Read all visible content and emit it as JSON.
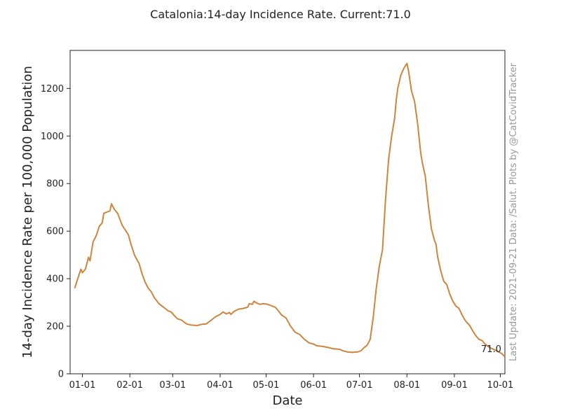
{
  "chart_data": {
    "type": "line",
    "title": "Catalonia:14-day Incidence Rate. Current:71.0",
    "xlabel": "Date",
    "ylabel": "14-day Incidence Rate per 100,000 Population",
    "side_note": "Last Update: 2021-09-21 Data: /Salut.   Plots by @CatCovidTracker",
    "annotation": "71.0",
    "line_color": "#cd853f",
    "ylim": [
      0,
      1360
    ],
    "yticks": [
      0,
      200,
      400,
      600,
      800,
      1000,
      1200
    ],
    "xlim": [
      "2020-12-24",
      "2021-10-04"
    ],
    "xticks": [
      {
        "date": "2021-01-01",
        "label": "01-01"
      },
      {
        "date": "2021-02-01",
        "label": "02-01"
      },
      {
        "date": "2021-03-01",
        "label": "03-01"
      },
      {
        "date": "2021-04-01",
        "label": "04-01"
      },
      {
        "date": "2021-05-01",
        "label": "05-01"
      },
      {
        "date": "2021-06-01",
        "label": "06-01"
      },
      {
        "date": "2021-07-01",
        "label": "07-01"
      },
      {
        "date": "2021-08-01",
        "label": "08-01"
      },
      {
        "date": "2021-09-01",
        "label": "09-01"
      },
      {
        "date": "2021-10-01",
        "label": "10-01"
      }
    ],
    "series": [
      {
        "points": [
          [
            "2020-12-27",
            360
          ],
          [
            "2020-12-29",
            400
          ],
          [
            "2020-12-31",
            440
          ],
          [
            "2021-01-01",
            425
          ],
          [
            "2021-01-03",
            440
          ],
          [
            "2021-01-05",
            490
          ],
          [
            "2021-01-06",
            475
          ],
          [
            "2021-01-08",
            555
          ],
          [
            "2021-01-10",
            580
          ],
          [
            "2021-01-12",
            620
          ],
          [
            "2021-01-14",
            635
          ],
          [
            "2021-01-15",
            675
          ],
          [
            "2021-01-17",
            680
          ],
          [
            "2021-01-19",
            685
          ],
          [
            "2021-01-20",
            715
          ],
          [
            "2021-01-22",
            690
          ],
          [
            "2021-01-24",
            675
          ],
          [
            "2021-01-27",
            625
          ],
          [
            "2021-01-30",
            595
          ],
          [
            "2021-01-31",
            585
          ],
          [
            "2021-02-02",
            540
          ],
          [
            "2021-02-04",
            500
          ],
          [
            "2021-02-06",
            475
          ],
          [
            "2021-02-07",
            465
          ],
          [
            "2021-02-09",
            420
          ],
          [
            "2021-02-11",
            385
          ],
          [
            "2021-02-13",
            360
          ],
          [
            "2021-02-15",
            345
          ],
          [
            "2021-02-17",
            320
          ],
          [
            "2021-02-20",
            295
          ],
          [
            "2021-02-22",
            285
          ],
          [
            "2021-02-24",
            275
          ],
          [
            "2021-02-26",
            265
          ],
          [
            "2021-02-28",
            260
          ],
          [
            "2021-03-02",
            245
          ],
          [
            "2021-03-04",
            232
          ],
          [
            "2021-03-07",
            225
          ],
          [
            "2021-03-10",
            210
          ],
          [
            "2021-03-13",
            205
          ],
          [
            "2021-03-17",
            203
          ],
          [
            "2021-03-20",
            208
          ],
          [
            "2021-03-23",
            210
          ],
          [
            "2021-03-26",
            225
          ],
          [
            "2021-03-29",
            240
          ],
          [
            "2021-04-01",
            250
          ],
          [
            "2021-04-03",
            260
          ],
          [
            "2021-04-05",
            252
          ],
          [
            "2021-04-07",
            258
          ],
          [
            "2021-04-08",
            250
          ],
          [
            "2021-04-10",
            262
          ],
          [
            "2021-04-13",
            272
          ],
          [
            "2021-04-16",
            275
          ],
          [
            "2021-04-19",
            280
          ],
          [
            "2021-04-20",
            295
          ],
          [
            "2021-04-22",
            292
          ],
          [
            "2021-04-23",
            305
          ],
          [
            "2021-04-25",
            297
          ],
          [
            "2021-04-27",
            292
          ],
          [
            "2021-04-29",
            295
          ],
          [
            "2021-05-02",
            292
          ],
          [
            "2021-05-05",
            285
          ],
          [
            "2021-05-07",
            280
          ],
          [
            "2021-05-09",
            265
          ],
          [
            "2021-05-11",
            248
          ],
          [
            "2021-05-14",
            235
          ],
          [
            "2021-05-17",
            200
          ],
          [
            "2021-05-20",
            175
          ],
          [
            "2021-05-23",
            165
          ],
          [
            "2021-05-26",
            145
          ],
          [
            "2021-05-29",
            130
          ],
          [
            "2021-06-01",
            125
          ],
          [
            "2021-06-03",
            118
          ],
          [
            "2021-06-07",
            115
          ],
          [
            "2021-06-11",
            110
          ],
          [
            "2021-06-14",
            105
          ],
          [
            "2021-06-18",
            103
          ],
          [
            "2021-06-20",
            97
          ],
          [
            "2021-06-23",
            92
          ],
          [
            "2021-06-26",
            90
          ],
          [
            "2021-06-30",
            92
          ],
          [
            "2021-07-02",
            97
          ],
          [
            "2021-07-04",
            110
          ],
          [
            "2021-07-06",
            120
          ],
          [
            "2021-07-08",
            145
          ],
          [
            "2021-07-10",
            240
          ],
          [
            "2021-07-12",
            360
          ],
          [
            "2021-07-14",
            455
          ],
          [
            "2021-07-16",
            520
          ],
          [
            "2021-07-18",
            730
          ],
          [
            "2021-07-20",
            900
          ],
          [
            "2021-07-22",
            1000
          ],
          [
            "2021-07-24",
            1075
          ],
          [
            "2021-07-25",
            1150
          ],
          [
            "2021-07-26",
            1200
          ],
          [
            "2021-07-28",
            1255
          ],
          [
            "2021-07-30",
            1285
          ],
          [
            "2021-08-01",
            1305
          ],
          [
            "2021-08-02",
            1275
          ],
          [
            "2021-08-04",
            1190
          ],
          [
            "2021-08-06",
            1145
          ],
          [
            "2021-08-08",
            1050
          ],
          [
            "2021-08-10",
            930
          ],
          [
            "2021-08-11",
            890
          ],
          [
            "2021-08-13",
            830
          ],
          [
            "2021-08-15",
            710
          ],
          [
            "2021-08-17",
            610
          ],
          [
            "2021-08-19",
            560
          ],
          [
            "2021-08-20",
            545
          ],
          [
            "2021-08-21",
            495
          ],
          [
            "2021-08-23",
            435
          ],
          [
            "2021-08-25",
            390
          ],
          [
            "2021-08-27",
            375
          ],
          [
            "2021-08-29",
            335
          ],
          [
            "2021-08-31",
            305
          ],
          [
            "2021-09-02",
            285
          ],
          [
            "2021-09-04",
            275
          ],
          [
            "2021-09-06",
            248
          ],
          [
            "2021-09-08",
            225
          ],
          [
            "2021-09-10",
            210
          ],
          [
            "2021-09-11",
            203
          ],
          [
            "2021-09-13",
            180
          ],
          [
            "2021-09-15",
            160
          ],
          [
            "2021-09-17",
            145
          ],
          [
            "2021-09-19",
            140
          ],
          [
            "2021-09-21",
            125
          ],
          [
            "2021-09-24",
            110
          ],
          [
            "2021-09-27",
            102
          ],
          [
            "2021-09-29",
            95
          ],
          [
            "2021-10-02",
            85
          ],
          [
            "2021-10-04",
            71
          ]
        ]
      }
    ]
  }
}
